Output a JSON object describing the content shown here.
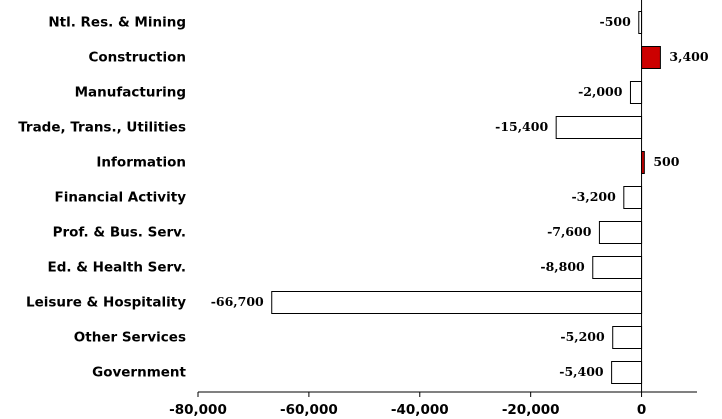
{
  "chart_data": {
    "type": "bar",
    "orientation": "horizontal",
    "categories": [
      "Ntl. Res. & Mining",
      "Construction",
      "Manufacturing",
      "Trade, Trans., Utilities",
      "Information",
      "Financial Activity",
      "Prof. & Bus. Serv.",
      "Ed. & Health Serv.",
      "Leisure & Hospitality",
      "Other Services",
      "Government"
    ],
    "values": [
      -500,
      3400,
      -2000,
      -15400,
      500,
      -3200,
      -7600,
      -8800,
      -66700,
      -5200,
      -5400
    ],
    "value_labels": [
      "-500",
      "3,400",
      "-2,000",
      "-15,400",
      "500",
      "-3,200",
      "-7,600",
      "-8,800",
      "-66,700",
      "-5,200",
      "-5,400"
    ],
    "xlim": [
      -80000,
      10000
    ],
    "xticks": [
      -80000,
      -60000,
      -40000,
      -20000,
      0
    ],
    "xtick_labels": [
      "-80,000",
      "-60,000",
      "-40,000",
      "-20,000",
      "0"
    ],
    "colors": {
      "positive": "#cc0000",
      "negative": "#ffffff",
      "outline": "#000000"
    },
    "grid": false,
    "legend": "none"
  }
}
